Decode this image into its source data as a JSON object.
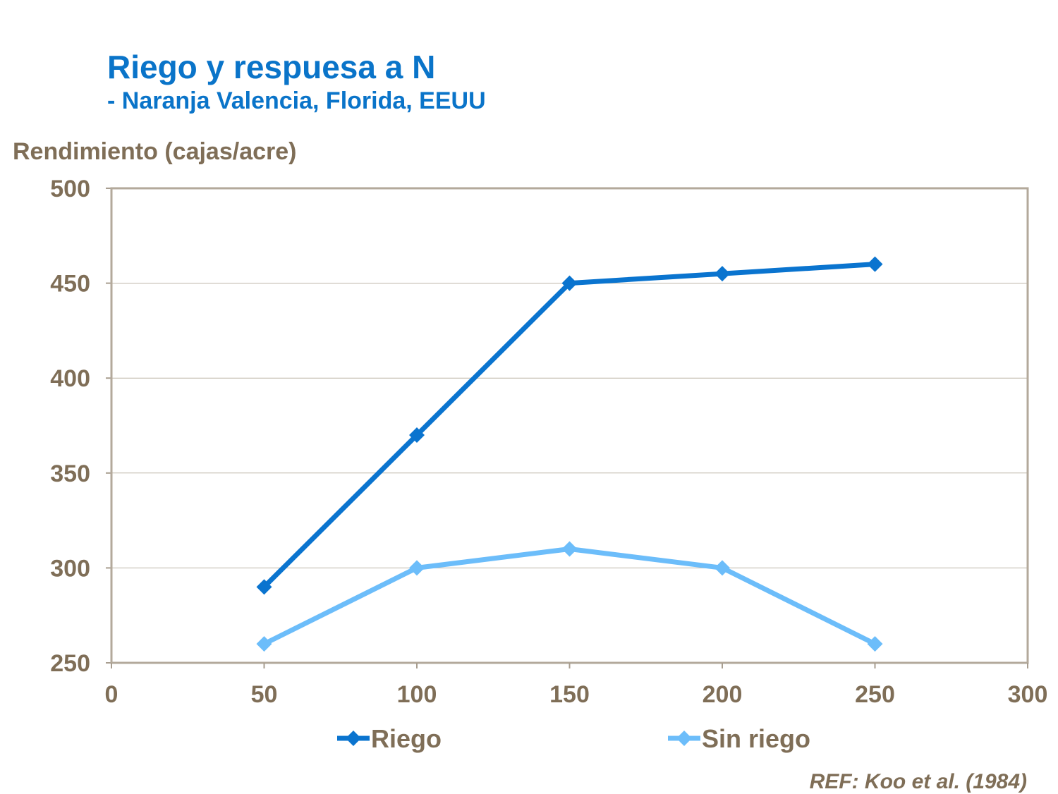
{
  "chart_data": {
    "type": "line",
    "title": "Riego y respuesa a N",
    "subtitle": "- Naranja Valencia, Florida, EEUU",
    "ylabel": "Rendimiento (cajas/acre)",
    "xlabel": "",
    "xlim": [
      0,
      300
    ],
    "ylim": [
      250,
      500
    ],
    "xticks": [
      0,
      50,
      100,
      150,
      200,
      250,
      300
    ],
    "yticks": [
      250,
      300,
      350,
      400,
      450,
      500
    ],
    "grid": "horizontal",
    "legend_placement": "bottom",
    "x": [
      50,
      100,
      150,
      200,
      250
    ],
    "series": [
      {
        "name": "Riego",
        "values": [
          290,
          370,
          450,
          455,
          460
        ],
        "color": "#0A74CF",
        "marker": "diamond"
      },
      {
        "name": "Sin riego",
        "values": [
          260,
          300,
          310,
          300,
          260
        ],
        "color": "#6CBDFA",
        "marker": "diamond"
      }
    ],
    "annotation": "REF: Koo et al. (1984)"
  }
}
